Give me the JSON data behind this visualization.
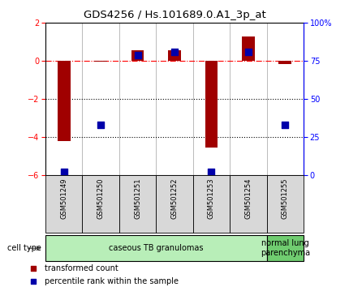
{
  "title": "GDS4256 / Hs.101689.0.A1_3p_at",
  "samples": [
    "GSM501249",
    "GSM501250",
    "GSM501251",
    "GSM501252",
    "GSM501253",
    "GSM501254",
    "GSM501255"
  ],
  "transformed_count": [
    -4.2,
    -0.05,
    0.55,
    0.55,
    -4.55,
    1.3,
    -0.18
  ],
  "percentile_rank": [
    2,
    33,
    79,
    81,
    2,
    81,
    33
  ],
  "ylim_left": [
    -6,
    2
  ],
  "ylim_right": [
    0,
    100
  ],
  "left_yticks": [
    -6,
    -4,
    -2,
    0,
    2
  ],
  "right_yticks": [
    0,
    25,
    50,
    75,
    100
  ],
  "right_yticklabels": [
    "0",
    "25",
    "50",
    "75",
    "100%"
  ],
  "dotted_lines": [
    -2,
    -4
  ],
  "bar_color": "#a00000",
  "scatter_color": "#0000aa",
  "bar_width": 0.35,
  "scatter_size": 28,
  "scatter_marker": "s",
  "cell_types": [
    {
      "label": "caseous TB granulomas",
      "start": 0,
      "end": 5,
      "color": "#b8eeb8"
    },
    {
      "label": "normal lung\nparenchyma",
      "start": 6,
      "end": 6,
      "color": "#70cc70"
    }
  ],
  "cell_type_label": "cell type",
  "legend_items": [
    {
      "color": "#a00000",
      "label": "transformed count"
    },
    {
      "color": "#0000aa",
      "label": "percentile rank within the sample"
    }
  ],
  "title_fontsize": 9.5,
  "tick_fontsize": 7,
  "sample_fontsize": 6,
  "legend_fontsize": 7,
  "cell_type_fontsize": 7
}
